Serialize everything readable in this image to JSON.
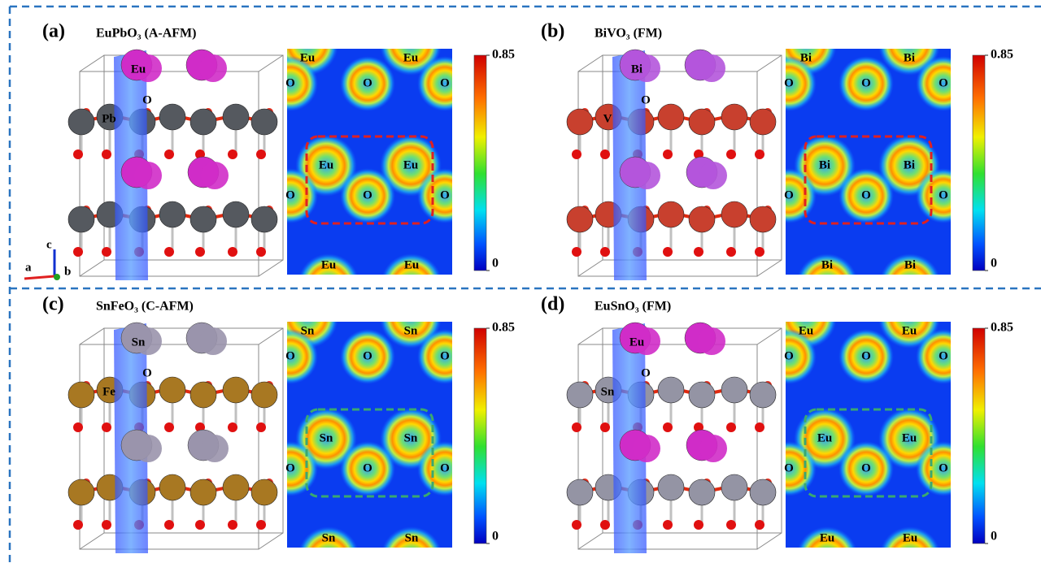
{
  "panels": [
    {
      "label": "(a)",
      "title": "EuPbO₃ (A-AFM)",
      "structure_labels": [
        "Eu",
        "O",
        "Pb"
      ],
      "axes": [
        "c",
        "a",
        "b"
      ],
      "map_labels": [
        "Eu",
        "Eu",
        "O",
        "O",
        "O",
        "Eu",
        "Eu",
        "O",
        "O",
        "O",
        "Eu",
        "Eu"
      ],
      "colorbar": {
        "lim": [
          0,
          0.85
        ],
        "ticks": [
          0.85,
          0
        ]
      },
      "a_site_color": "#d02cc8",
      "b_site_color": "#55595f",
      "highlight_color": "#e02020"
    },
    {
      "label": "(b)",
      "title": "BiVO₃ (FM)",
      "structure_labels": [
        "Bi",
        "O",
        "V"
      ],
      "map_labels": [
        "Bi",
        "Bi",
        "O",
        "O",
        "O",
        "Bi",
        "Bi",
        "O",
        "O",
        "O",
        "Bi",
        "Bi"
      ],
      "colorbar": {
        "lim": [
          0,
          0.85
        ],
        "ticks": [
          0.85,
          0
        ]
      },
      "a_site_color": "#b455dc",
      "b_site_color": "#c8402e",
      "highlight_color": "#e02020"
    },
    {
      "label": "(c)",
      "title": "SnFeO₃ (C-AFM)",
      "structure_labels": [
        "Sn",
        "O",
        "Fe"
      ],
      "map_labels": [
        "Sn",
        "Sn",
        "O",
        "O",
        "O",
        "Sn",
        "Sn",
        "O",
        "O",
        "O",
        "Sn",
        "Sn"
      ],
      "colorbar": {
        "lim": [
          0,
          0.85
        ],
        "ticks": [
          0.85,
          0
        ]
      },
      "a_site_color": "#9a94ac",
      "b_site_color": "#a87822",
      "highlight_color": "#3aa870"
    },
    {
      "label": "(d)",
      "title": "EuSnO₃ (FM)",
      "structure_labels": [
        "Eu",
        "O",
        "Sn"
      ],
      "map_labels": [
        "Eu",
        "Eu",
        "O",
        "O",
        "O",
        "Eu",
        "Eu",
        "O",
        "O",
        "O",
        "Eu",
        "Eu"
      ],
      "colorbar": {
        "lim": [
          0,
          0.85
        ],
        "ticks": [
          0.85,
          0
        ]
      },
      "a_site_color": "#d02cc8",
      "b_site_color": "#9494a4",
      "highlight_color": "#3aa870"
    }
  ]
}
